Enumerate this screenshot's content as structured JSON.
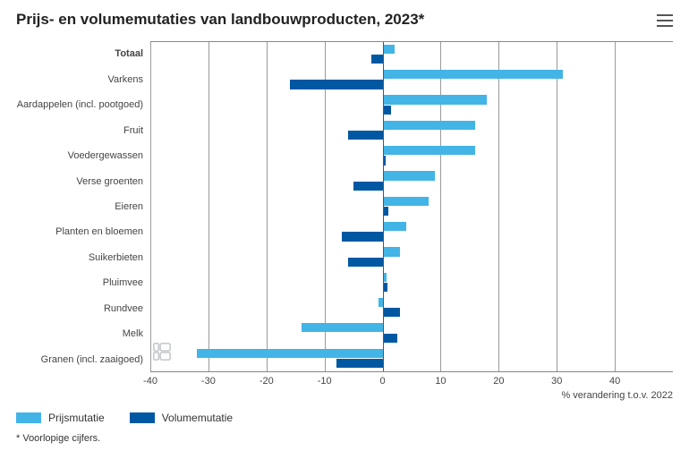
{
  "chart": {
    "type": "bar",
    "orientation": "horizontal",
    "grouped": true,
    "title": "Prijs- en volumemutaties van landbouwproducten, 2023*",
    "title_fontsize": 17,
    "title_color": "#222222",
    "x_axis": {
      "title": "% verandering t.o.v. 2022",
      "min": -40,
      "max": 50,
      "ticks": [
        -40,
        -30,
        -20,
        -10,
        0,
        10,
        20,
        30,
        40
      ],
      "tick_fontsize": 11,
      "grid_color": "#888888",
      "zero_line_color": "#555555"
    },
    "y_label_fontsize": 11,
    "categories": [
      "Totaal",
      "Varkens",
      "Aardappelen (incl. pootgoed)",
      "Fruit",
      "Voedergewassen",
      "Verse groenten",
      "Eieren",
      "Planten en bloemen",
      "Suikerbieten",
      "Pluimvee",
      "Rundvee",
      "Melk",
      "Granen (incl. zaaigoed)"
    ],
    "series": [
      {
        "name": "Prijsmutatie",
        "color": "#42b4e6",
        "values": [
          2,
          31,
          18,
          16,
          16,
          9,
          8,
          4,
          3,
          0.7,
          -0.7,
          -14,
          -32
        ]
      },
      {
        "name": "Volumemutatie",
        "color": "#0058a3",
        "values": [
          -2,
          -16,
          1.5,
          -6,
          0.5,
          -5,
          1,
          -7,
          -6,
          0.8,
          3,
          2.5,
          -8
        ]
      }
    ],
    "background_color": "#ffffff",
    "bar_height_ratio": 0.36
  },
  "legend": {
    "items": [
      {
        "label": "Prijsmutatie",
        "color": "#42b4e6"
      },
      {
        "label": "Volumemutatie",
        "color": "#0058a3"
      }
    ],
    "fontsize": 12
  },
  "footnote": "* Voorlopige cijfers.",
  "watermark_color": "#9aa0a6",
  "menu_icon_color": "#555555"
}
